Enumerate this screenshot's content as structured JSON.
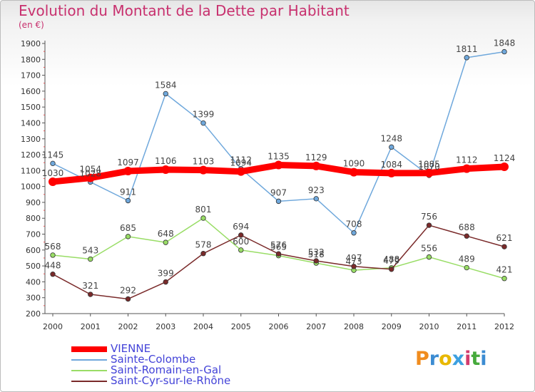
{
  "header": {
    "title": "Evolution du Montant de la Dette par Habitant",
    "subtitle": "(en €)"
  },
  "logo": {
    "text": "Proxiti",
    "colors": [
      "#f08c1e",
      "#3c8cd2",
      "#e8b800",
      "#3ca0e0",
      "#d23c6e",
      "#46aa3c",
      "#3c8cd2"
    ]
  },
  "chart_data": {
    "type": "line",
    "x": [
      2000,
      2001,
      2002,
      2003,
      2004,
      2005,
      2006,
      2007,
      2008,
      2009,
      2010,
      2011,
      2012
    ],
    "ylim": [
      200,
      1900
    ],
    "yticks": [
      200,
      300,
      400,
      500,
      600,
      700,
      800,
      900,
      1000,
      1100,
      1200,
      1300,
      1400,
      1500,
      1600,
      1700,
      1800,
      1900
    ],
    "grid": false,
    "legend_position": "bottom-left",
    "series": [
      {
        "name": "VIENNE",
        "color": "#ff0000",
        "values": [
          1030,
          1054,
          1097,
          1106,
          1103,
          1094,
          1135,
          1129,
          1090,
          1084,
          1085,
          1112,
          1124
        ]
      },
      {
        "name": "Sainte-Colombe",
        "color": "#6fa8dc",
        "values": [
          1145,
          1028,
          911,
          1584,
          1399,
          1112,
          907,
          923,
          708,
          1248,
          1070,
          1811,
          1848
        ]
      },
      {
        "name": "Saint-Romain-en-Gal",
        "color": "#99dd66",
        "values": [
          568,
          543,
          685,
          648,
          801,
          600,
          565,
          518,
          473,
          488,
          556,
          489,
          421
        ]
      },
      {
        "name": "Saint-Cyr-sur-le-Rhône",
        "color": "#7a2a2a",
        "values": [
          448,
          321,
          292,
          399,
          578,
          694,
          576,
          532,
          497,
          479,
          756,
          688,
          621
        ]
      }
    ]
  }
}
